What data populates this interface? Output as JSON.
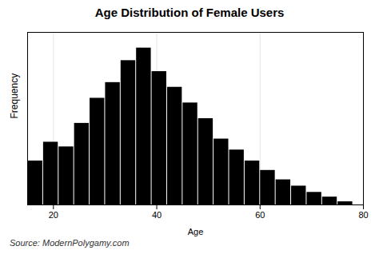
{
  "chart_data": {
    "type": "histogram",
    "title": "Age Distribution of Female Users",
    "xlabel": "Age",
    "ylabel": "Frequency",
    "caption": "Source: ModernPolygamy.com",
    "bins": [
      15,
      18,
      21,
      24,
      27,
      30,
      33,
      36,
      39,
      42,
      45,
      48,
      51,
      54,
      57,
      60,
      63,
      66,
      69,
      72,
      75,
      78
    ],
    "values": [
      28,
      40,
      37,
      52,
      68,
      78,
      92,
      100,
      85,
      75,
      65,
      55,
      42,
      35,
      28,
      22,
      16,
      12,
      8,
      5,
      2
    ],
    "xlim": [
      15,
      80
    ],
    "xticks": [
      20,
      40,
      60,
      80
    ],
    "ylim": [
      0,
      110
    ],
    "grid": true,
    "tick_labels": "x"
  }
}
